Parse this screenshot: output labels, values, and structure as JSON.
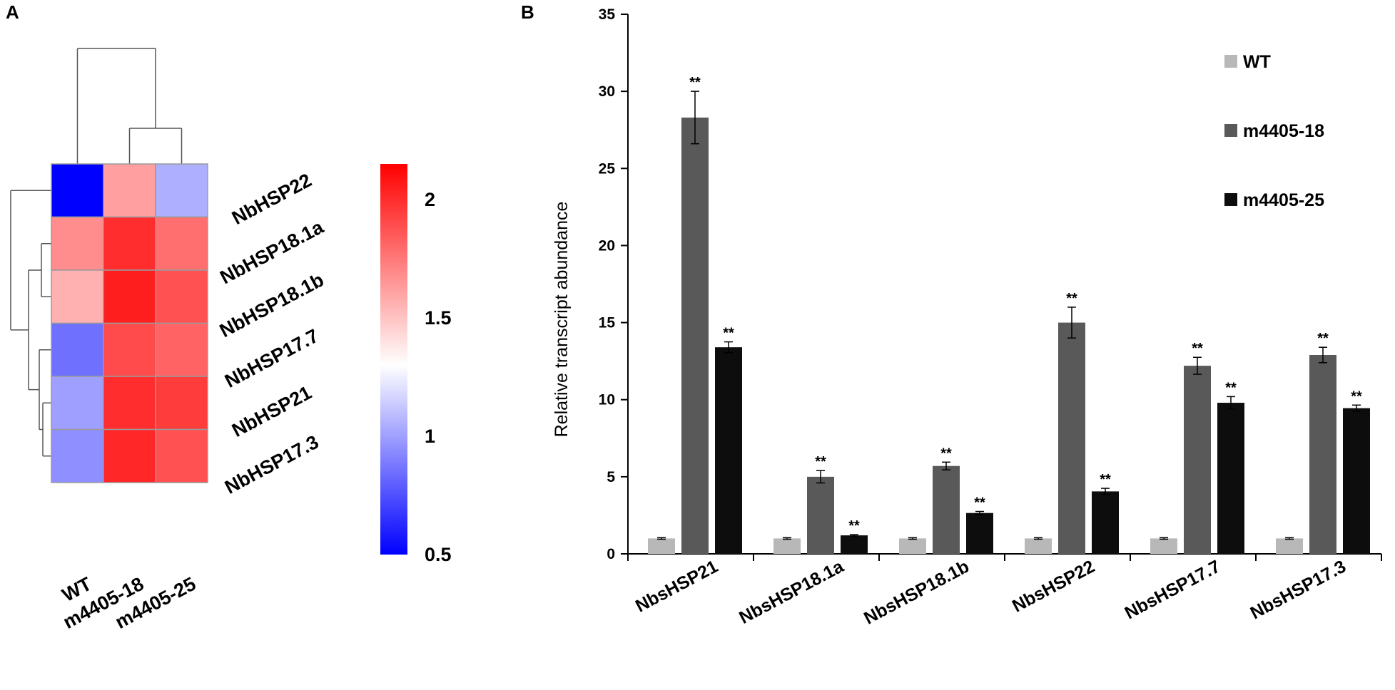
{
  "chart_data": [
    {
      "type": "heatmap",
      "panel_label": "A",
      "rows": [
        "NbHSP22",
        "NbHSP18.1a",
        "NbHSP18.1b",
        "NbHSP17.7",
        "NbHSP21",
        "NbHSP17.3"
      ],
      "columns": [
        "WT",
        "m4405-18",
        "m4405-25"
      ],
      "values": [
        [
          0.5,
          1.62,
          1.05
        ],
        [
          1.68,
          2.0,
          1.78
        ],
        [
          1.56,
          2.05,
          1.88
        ],
        [
          0.85,
          1.9,
          1.82
        ],
        [
          1.0,
          2.0,
          1.95
        ],
        [
          0.95,
          2.02,
          1.88
        ]
      ],
      "colorbar": {
        "min": 0.5,
        "max": 2.15,
        "ticks": [
          0.5,
          1,
          1.5,
          2
        ],
        "tick_labels": [
          "0.5",
          "1",
          "1.5",
          "2"
        ],
        "low_color": "#0000ff",
        "mid_color": "#ffffff",
        "high_color": "#ff0000",
        "mid_value": 1.3
      },
      "dendrograms": {
        "columns": true,
        "rows": true
      }
    },
    {
      "type": "bar",
      "panel_label": "B",
      "categories": [
        "NbsHSP21",
        "NbsHSP18.1a",
        "NbsHSP18.1b",
        "NbsHSP22",
        "NbsHSP17.7",
        "NbsHSP17.3"
      ],
      "series": [
        {
          "name": "WT",
          "color": "#b8b8b8",
          "values": [
            1,
            1,
            1,
            1,
            1,
            1
          ],
          "errors": [
            0.05,
            0.05,
            0.05,
            0.05,
            0.05,
            0.05
          ],
          "significance": [
            "",
            "",
            "",
            "",
            "",
            ""
          ]
        },
        {
          "name": "m4405-18",
          "color": "#595959",
          "values": [
            28.3,
            5.0,
            5.7,
            15.0,
            12.2,
            12.9
          ],
          "errors": [
            1.7,
            0.4,
            0.25,
            1.0,
            0.55,
            0.5
          ],
          "significance": [
            "**",
            "**",
            "**",
            "**",
            "**",
            "**"
          ]
        },
        {
          "name": "m4405-25",
          "color": "#0d0d0d",
          "values": [
            13.4,
            1.2,
            2.65,
            4.05,
            9.8,
            9.45
          ],
          "errors": [
            0.35,
            0.05,
            0.1,
            0.2,
            0.4,
            0.2
          ],
          "significance": [
            "**",
            "**",
            "**",
            "**",
            "**",
            "**"
          ]
        }
      ],
      "ylabel": "Relative transcript abundance",
      "xlabel": "",
      "ylim": [
        0,
        35
      ],
      "yticks": [
        0,
        5,
        10,
        15,
        20,
        25,
        30,
        35
      ],
      "ytick_labels": [
        "0",
        "5",
        "10",
        "15",
        "20",
        "25",
        "30",
        "35"
      ],
      "legend_position": "top-right"
    }
  ]
}
